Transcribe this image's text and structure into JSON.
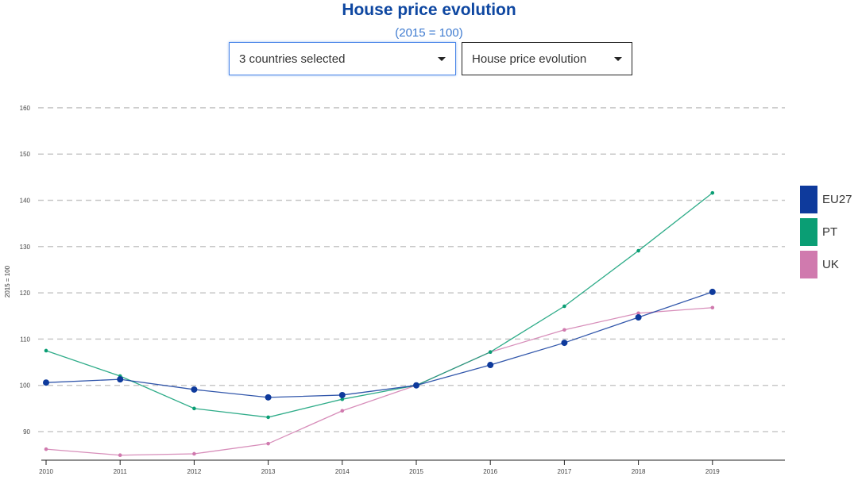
{
  "header": {
    "title": "House price evolution",
    "subtitle": "(2015 = 100)"
  },
  "controls": {
    "country_select": "3 countries selected",
    "indicator_select": "House price evolution"
  },
  "chart_data": {
    "type": "line",
    "title": "House price evolution",
    "subtitle": "(2015 = 100)",
    "xlabel": "",
    "ylabel": "2015 = 100",
    "x": [
      2010,
      2011,
      2012,
      2013,
      2014,
      2015,
      2016,
      2017,
      2018,
      2019
    ],
    "yticks": [
      90,
      100,
      110,
      120,
      130,
      140,
      150,
      160
    ],
    "ylim": [
      84,
      161
    ],
    "grid": true,
    "legend_position": "right",
    "series": [
      {
        "name": "EU27",
        "color": "#0e3a9c",
        "values": [
          100.6,
          101.3,
          99.1,
          97.4,
          97.9,
          100,
          104.4,
          109.2,
          114.7,
          120.2
        ]
      },
      {
        "name": "PT",
        "color": "#0a9e74",
        "values": [
          107.5,
          102.0,
          95.0,
          93.1,
          97.0,
          100,
          107.2,
          117.1,
          129.1,
          141.6
        ]
      },
      {
        "name": "UK",
        "color": "#d07aae",
        "values": [
          86.2,
          84.9,
          85.2,
          87.4,
          94.5,
          100,
          107.2,
          112.0,
          115.6,
          116.8
        ]
      }
    ]
  }
}
